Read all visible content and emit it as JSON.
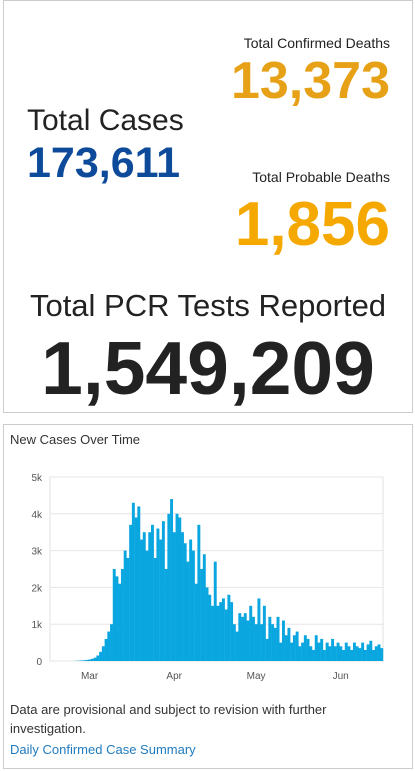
{
  "stats": {
    "confirmed_deaths": {
      "label": "Total Confirmed Deaths",
      "value": "13,373"
    },
    "total_cases": {
      "label": "Total Cases",
      "value": "173,611"
    },
    "probable_deaths": {
      "label": "Total Probable Deaths",
      "value": "1,856"
    },
    "pcr_tests": {
      "label": "Total PCR Tests Reported",
      "value": "1,549,209"
    }
  },
  "chart_data": {
    "type": "bar",
    "title": "New Cases Over Time",
    "color": "#0aa6e0",
    "grid": true,
    "categories": [
      null,
      null,
      null,
      null,
      null,
      null,
      null,
      null,
      null,
      null,
      null,
      null,
      null,
      null,
      "Mar",
      null,
      null,
      null,
      null,
      null,
      null,
      null,
      null,
      null,
      null,
      null,
      null,
      null,
      null,
      null,
      null,
      null,
      null,
      null,
      null,
      null,
      null,
      null,
      null,
      null,
      null,
      null,
      null,
      null,
      null,
      "Apr",
      null,
      null,
      null,
      null,
      null,
      null,
      null,
      null,
      null,
      null,
      null,
      null,
      null,
      null,
      null,
      null,
      null,
      null,
      null,
      null,
      null,
      null,
      null,
      null,
      null,
      null,
      null,
      null,
      null,
      "May",
      null,
      null,
      null,
      null,
      null,
      null,
      null,
      null,
      null,
      null,
      null,
      null,
      null,
      null,
      null,
      null,
      null,
      null,
      null,
      null,
      null,
      null,
      null,
      null,
      null,
      null,
      null,
      null,
      null,
      null,
      "Jun",
      null,
      null,
      null,
      null,
      null,
      null,
      null,
      null,
      null,
      null,
      null,
      null,
      null,
      null,
      null
    ],
    "values": [
      0,
      0,
      0,
      0,
      0,
      0,
      0,
      0,
      0,
      5,
      10,
      15,
      20,
      30,
      40,
      60,
      90,
      150,
      250,
      400,
      600,
      800,
      1000,
      2500,
      2300,
      2100,
      2500,
      3000,
      2800,
      3700,
      4300,
      3900,
      4200,
      3300,
      3500,
      3000,
      3500,
      3700,
      2800,
      3600,
      3300,
      3800,
      2500,
      4000,
      4400,
      3500,
      4000,
      3900,
      3500,
      3200,
      2700,
      3300,
      3000,
      2100,
      3700,
      2500,
      2900,
      2000,
      1800,
      1500,
      2700,
      1500,
      1600,
      1700,
      1400,
      1800,
      1600,
      1000,
      800,
      1300,
      1200,
      1300,
      1100,
      1500,
      1200,
      1000,
      1700,
      1000,
      1500,
      600,
      1200,
      1000,
      900,
      1200,
      500,
      1100,
      700,
      900,
      500,
      700,
      800,
      400,
      500,
      700,
      600,
      400,
      300,
      700,
      500,
      600,
      300,
      500,
      400,
      600,
      400,
      500,
      400,
      300,
      500,
      400,
      300,
      500,
      400,
      350,
      500,
      300,
      450,
      550,
      300,
      400,
      450,
      350
    ],
    "ylim": [
      0,
      5000
    ],
    "yticks": [
      0,
      {
        "value": 1000,
        "label": "1k"
      },
      {
        "value": 2000,
        "label": "2k"
      },
      {
        "value": 3000,
        "label": "3k"
      },
      {
        "value": 4000,
        "label": "4k"
      },
      {
        "value": 5000,
        "label": "5k"
      }
    ]
  },
  "footer": {
    "note": "Data are provisional and subject to revision with further investigation.",
    "link": "Daily Confirmed Case Summary"
  }
}
